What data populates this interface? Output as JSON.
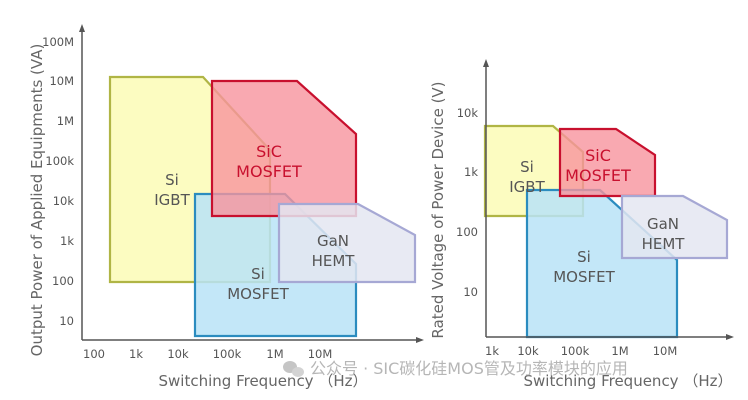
{
  "chart_data": [
    {
      "type": "region",
      "xlabel": "Switching Frequency （Hz）",
      "ylabel": "Output Power of Applied Equipments  (VA)",
      "x_ticks": [
        "100",
        "1k",
        "10k",
        "100k",
        "1M",
        "10M"
      ],
      "y_ticks": [
        "100M",
        "10M",
        "1M",
        "100k",
        "10k",
        "1k",
        "100",
        "10"
      ],
      "x_scale": "log",
      "y_scale": "log",
      "regions": [
        {
          "name": "Si IGBT",
          "line1": "Si",
          "line2": "IGBT",
          "fill": "#fcfbb6",
          "stroke": "#b0b545"
        },
        {
          "name": "SiC MOSFET",
          "line1": "SiC",
          "line2": "MOSFET",
          "fill": "#f7939d",
          "stroke": "#c8102e"
        },
        {
          "name": "Si MOSFET",
          "line1": "Si",
          "line2": "MOSFET",
          "fill": "#b9e3f7",
          "stroke": "#2b8cbf"
        },
        {
          "name": "GaN HEMT",
          "line1": "GaN",
          "line2": "HEMT",
          "fill": "#e4e6f1",
          "stroke": "#a6a8d4"
        }
      ]
    },
    {
      "type": "region",
      "xlabel": "Switching Frequency （Hz）",
      "ylabel": "Rated Voltage of Power Device  (V)",
      "x_ticks": [
        "1k",
        "10k",
        "100k",
        "1M",
        "10M"
      ],
      "y_ticks": [
        "10k",
        "1k",
        "100",
        "10"
      ],
      "x_scale": "log",
      "y_scale": "log",
      "regions": [
        {
          "name": "Si IGBT",
          "line1": "Si",
          "line2": "IGBT",
          "fill": "#fcfbb6",
          "stroke": "#b0b545"
        },
        {
          "name": "SiC MOSFET",
          "line1": "SiC",
          "line2": "MOSFET",
          "fill": "#f7939d",
          "stroke": "#c8102e"
        },
        {
          "name": "Si MOSFET",
          "line1": "Si",
          "line2": "MOSFET",
          "fill": "#b9e3f7",
          "stroke": "#2b8cbf"
        },
        {
          "name": "GaN HEMT",
          "line1": "GaN",
          "line2": "HEMT",
          "fill": "#e4e6f1",
          "stroke": "#a6a8d4"
        }
      ]
    }
  ],
  "watermark": "公众号 · SIC碳化硅MOS管及功率模块的应用"
}
